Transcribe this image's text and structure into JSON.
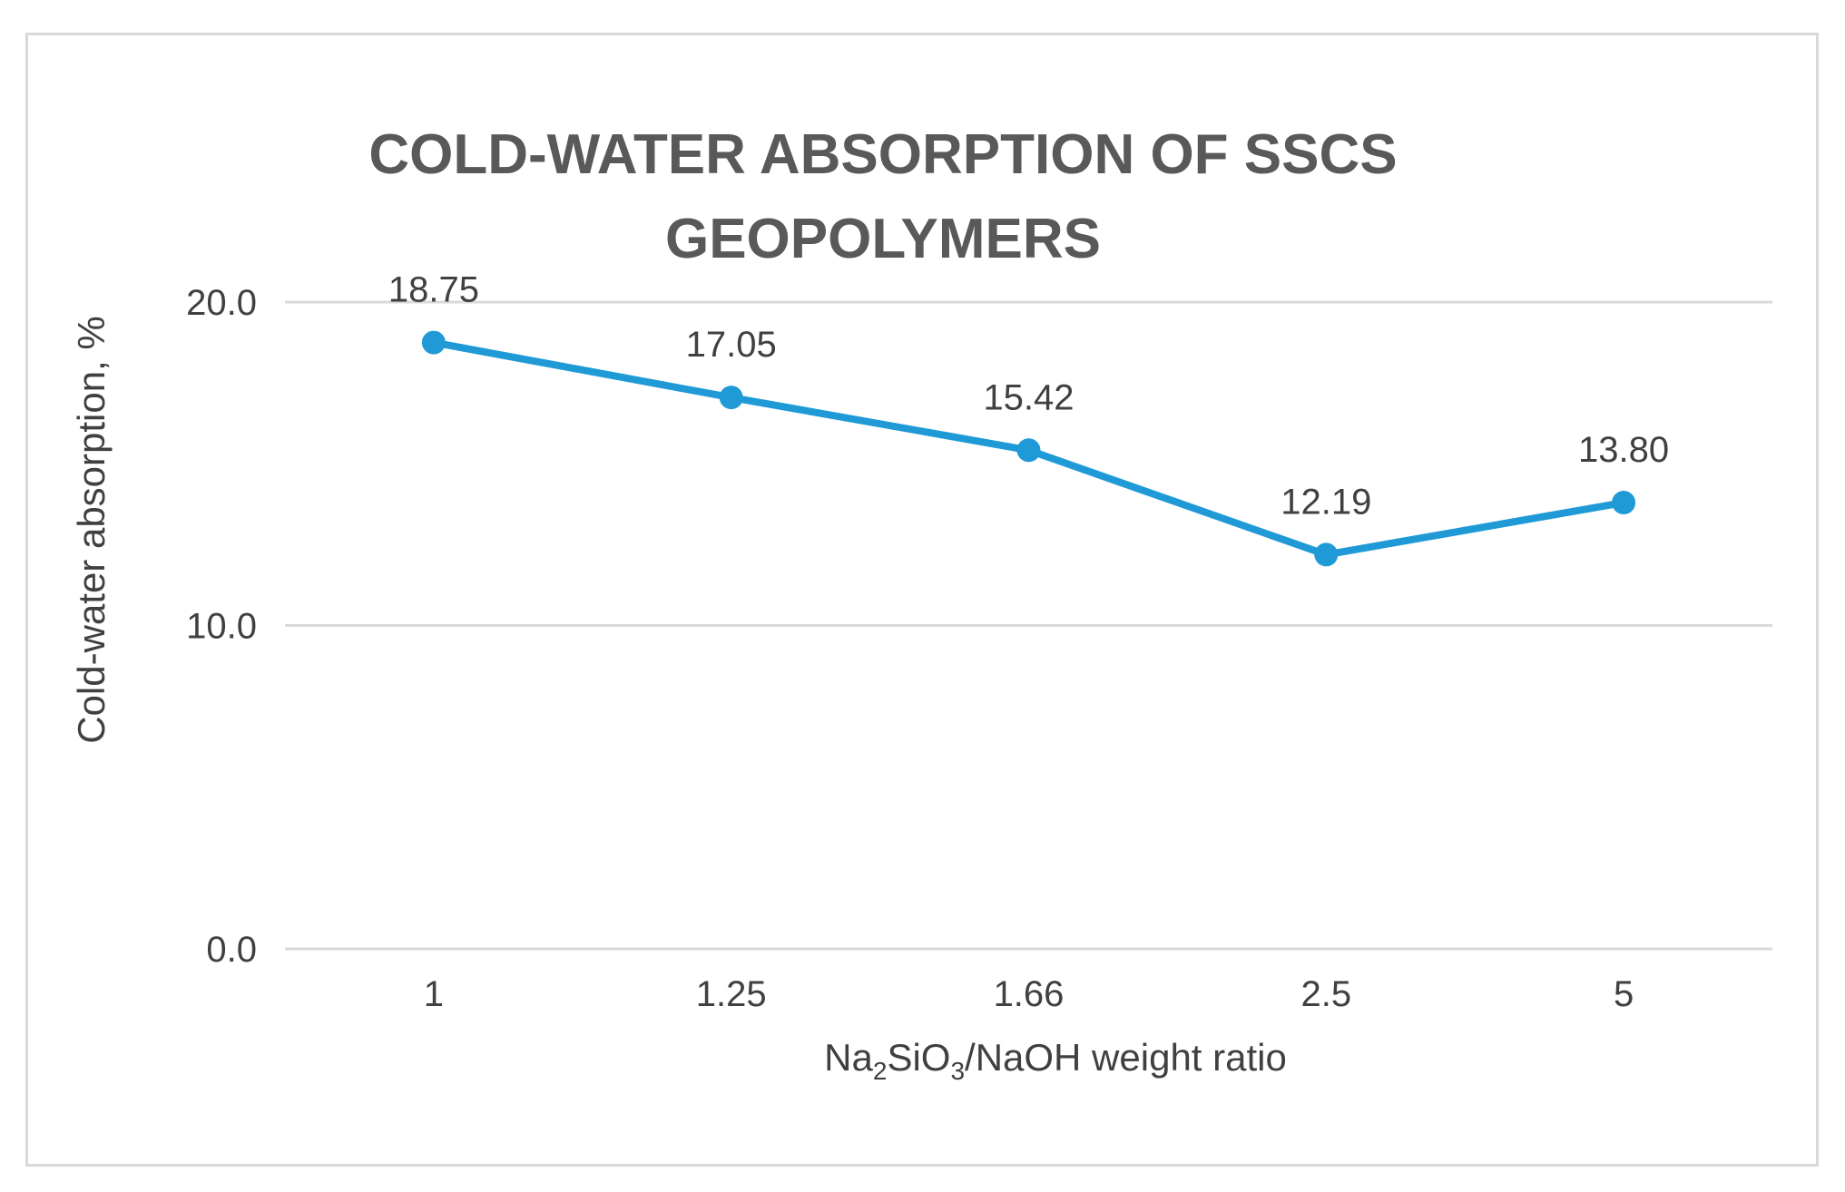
{
  "chart_data": {
    "type": "line",
    "title_lines": [
      "COLD-WATER ABSORPTION OF SSCS",
      "GEOPOLYMERS"
    ],
    "categories": [
      "1",
      "1.25",
      "1.66",
      "2.5",
      "5"
    ],
    "series": [
      {
        "name": "Cold-water absorption",
        "values": [
          18.75,
          17.05,
          15.42,
          12.19,
          13.8
        ],
        "labels": [
          "18.75",
          "17.05",
          "15.42",
          "12.19",
          "13.80"
        ]
      }
    ],
    "ylabel": "Cold-water absorption, %",
    "xlabel": {
      "part1": "Na",
      "sub1": "2",
      "part2": "SiO",
      "sub2": "3",
      "part3": "/NaOH weight ratio"
    },
    "ylim": [
      0,
      20
    ],
    "yticks": [
      0,
      10,
      20
    ],
    "ytick_labels": [
      "0.0",
      "10.0",
      "20.0"
    ],
    "grid": true,
    "legend": "none",
    "colors": {
      "line": "#1f9ad6",
      "grid": "#d9d9d9",
      "text": "#404040",
      "title": "#595959",
      "frame": "#d9d9d9"
    }
  }
}
